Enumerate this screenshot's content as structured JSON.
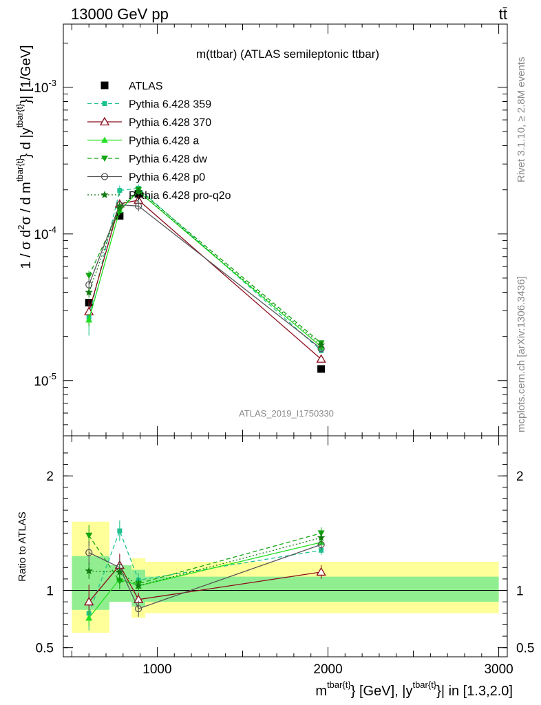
{
  "header": {
    "energy_label": "13000 GeV pp",
    "process_label": "tt̄"
  },
  "side": {
    "rivet_label": "Rivet 3.1.10, ≥ 2.8M events",
    "source_label": "mcplots.cern.ch [arXiv:1306.3436]"
  },
  "chart_data": [
    {
      "panel": "main",
      "type": "line",
      "title": "m(ttbar) (ATLAS semileptonic ttbar)",
      "watermark": "ATLAS_2019_I1750330",
      "ylabel": "1 / σ d²σ / d m^{tbar{t}} d |y^{tbar{t}}| [1/GeV]",
      "yscale": "log",
      "ylim": [
        4.2e-06,
        0.0027
      ],
      "yticks": [
        {
          "value": 1e-05,
          "label": "10^-5"
        },
        {
          "value": 0.0001,
          "label": "10^-4"
        },
        {
          "value": 0.001,
          "label": "10^-3"
        }
      ],
      "xlim": [
        450,
        3050
      ],
      "legend_position": "top-left",
      "series": [
        {
          "name": "ATLAS",
          "color": "#000000",
          "marker": "filled-square",
          "dash": "none",
          "x": [
            600,
            780,
            890,
            1960
          ],
          "y": [
            3.4e-05,
            0.000133,
            0.000188,
            1.2e-05
          ],
          "err": [
            0,
            0,
            0,
            0
          ]
        },
        {
          "name": "Pythia 6.428 359",
          "color": "#1fc190",
          "marker": "small-filled-square",
          "dash": "dashed",
          "x": [
            600,
            780,
            890,
            1960
          ],
          "y": [
            2.7e-05,
            0.000198,
            0.000205,
            1.6e-05
          ],
          "err": [
            0.25,
            0.08,
            0.06,
            0.04
          ]
        },
        {
          "name": "Pythia 6.428 370",
          "color": "#8b0a1a",
          "marker": "open-triangle",
          "dash": "solid",
          "x": [
            600,
            780,
            890,
            1960
          ],
          "y": [
            2.95e-05,
            0.00016,
            0.00017,
            1.4e-05
          ],
          "err": [
            0.2,
            0.07,
            0.06,
            0.05
          ]
        },
        {
          "name": "Pythia 6.428 a",
          "color": "#21e021",
          "marker": "filled-triangle",
          "dash": "solid",
          "x": [
            600,
            780,
            890,
            1960
          ],
          "y": [
            2.6e-05,
            0.000145,
            0.000195,
            1.7e-05
          ],
          "err": [
            0.1,
            0.07,
            0.05,
            0.05
          ]
        },
        {
          "name": "Pythia 6.428 dw",
          "color": "#11a511",
          "marker": "filled-inverted-triangle",
          "dash": "dashed",
          "x": [
            600,
            780,
            890,
            1960
          ],
          "y": [
            5.2e-05,
            0.000145,
            0.0002,
            1.8e-05
          ],
          "err": [
            0.08,
            0.07,
            0.05,
            0.05
          ]
        },
        {
          "name": "Pythia 6.428 p0",
          "color": "#555555",
          "marker": "open-circle",
          "dash": "solid",
          "x": [
            600,
            780,
            890,
            1960
          ],
          "y": [
            4.5e-05,
            0.000158,
            0.000155,
            1.65e-05
          ],
          "err": [
            0.1,
            0.07,
            0.08,
            0.05
          ]
        },
        {
          "name": "Pythia 6.428 pro-q2o",
          "color": "#117a11",
          "marker": "star",
          "dash": "dotted",
          "x": [
            600,
            780,
            890,
            1960
          ],
          "y": [
            4e-05,
            0.000155,
            0.000195,
            1.75e-05
          ],
          "err": [
            0.08,
            0.07,
            0.05,
            0.05
          ]
        }
      ]
    },
    {
      "panel": "ratio",
      "type": "line",
      "ylabel": "Ratio to ATLAS",
      "xlabel": "m^{tbar{t}} [GeV], |y^{tbar{t}}| in [1.3,2.0]",
      "ylim": [
        0.42,
        2.35
      ],
      "yticks": [
        {
          "value": 0.5,
          "label": "0.5"
        },
        {
          "value": 1,
          "label": "1"
        },
        {
          "value": 2,
          "label": "2"
        }
      ],
      "xlim": [
        450,
        3050
      ],
      "xticks": [
        {
          "value": 1000,
          "label": "1000"
        },
        {
          "value": 2000,
          "label": "2000"
        },
        {
          "value": 3000,
          "label": "3000"
        }
      ],
      "bands": [
        {
          "x0": 500,
          "x1": 720,
          "inner": [
            0.83,
            1.3
          ],
          "outer": [
            0.63,
            1.6
          ]
        },
        {
          "x0": 720,
          "x1": 850,
          "inner": [
            0.9,
            1.22
          ],
          "outer": [
            0.9,
            1.22
          ]
        },
        {
          "x0": 850,
          "x1": 930,
          "inner": [
            0.86,
            1.18
          ],
          "outer": [
            0.76,
            1.28
          ]
        },
        {
          "x0": 930,
          "x1": 3000,
          "inner": [
            0.9,
            1.12
          ],
          "outer": [
            0.8,
            1.25
          ]
        }
      ],
      "band_colors": {
        "inner": "#90ee90",
        "outer": "#ffff9a"
      },
      "series": [
        {
          "name": "Pythia 6.428 359",
          "x": [
            600,
            780,
            890,
            1960
          ],
          "y": [
            0.8,
            1.52,
            1.09,
            1.35
          ],
          "err": [
            0.15,
            0.09,
            0.06,
            0.04
          ]
        },
        {
          "name": "Pythia 6.428 370",
          "x": [
            600,
            780,
            890,
            1960
          ],
          "y": [
            0.9,
            1.22,
            0.92,
            1.16
          ],
          "err": [
            0.15,
            0.1,
            0.06,
            0.06
          ]
        },
        {
          "name": "Pythia 6.428 a",
          "x": [
            600,
            780,
            890,
            1960
          ],
          "y": [
            0.76,
            1.1,
            1.04,
            1.42
          ],
          "err": [
            0.07,
            0.06,
            0.05,
            0.05
          ]
        },
        {
          "name": "Pythia 6.428 dw",
          "x": [
            600,
            780,
            890,
            1960
          ],
          "y": [
            1.48,
            1.08,
            1.06,
            1.5
          ],
          "err": [
            0.09,
            0.07,
            0.05,
            0.05
          ]
        },
        {
          "name": "Pythia 6.428 p0",
          "x": [
            600,
            780,
            890,
            1960
          ],
          "y": [
            1.33,
            1.2,
            0.84,
            1.4
          ],
          "err": [
            0.1,
            0.08,
            0.07,
            0.05
          ]
        },
        {
          "name": "Pythia 6.428 pro-q2o",
          "x": [
            600,
            780,
            890,
            1960
          ],
          "y": [
            1.17,
            1.16,
            1.04,
            1.46
          ],
          "err": [
            0.07,
            0.07,
            0.05,
            0.05
          ]
        }
      ]
    }
  ]
}
